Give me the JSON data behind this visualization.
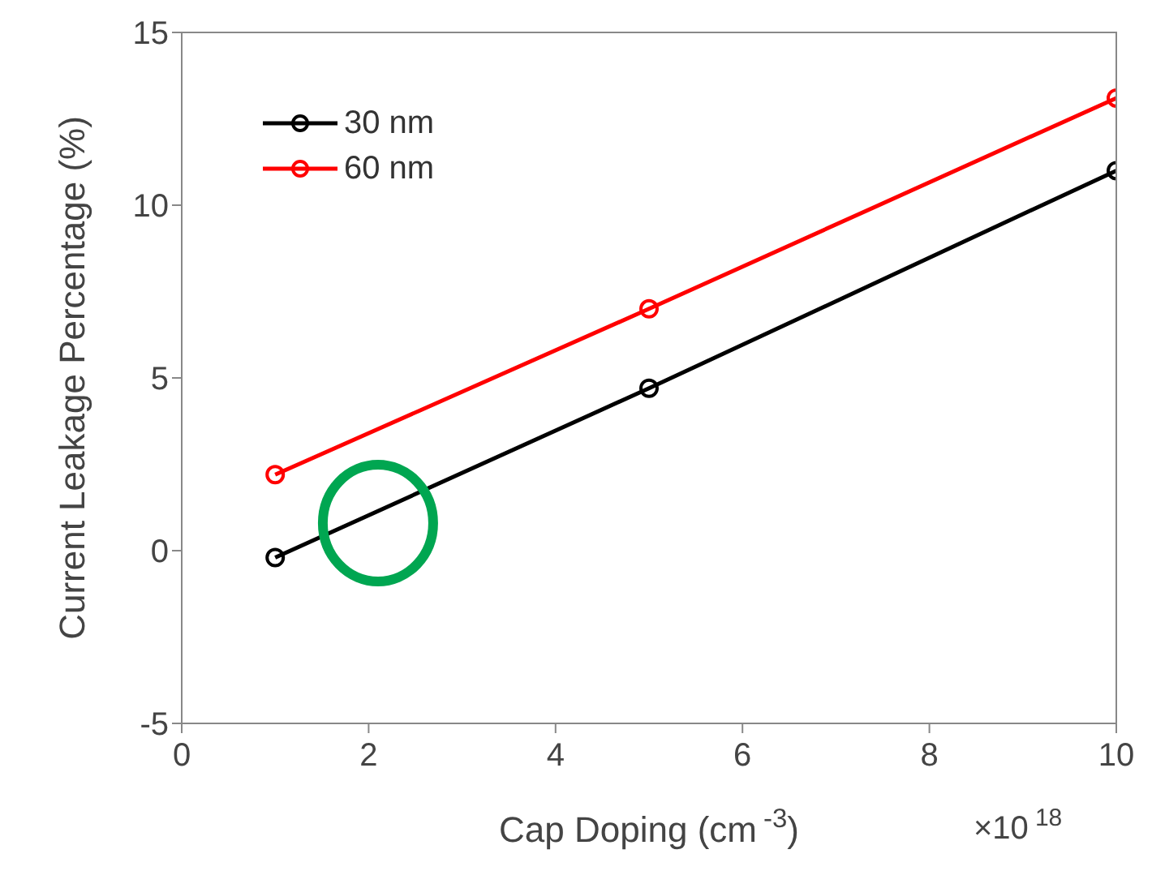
{
  "chart_data": {
    "type": "line",
    "xlabel": "Cap Doping (cm$^{-3}$)",
    "ylabel": "Current Leakage Percentage (%)",
    "annotations": [
      "×10$^{18}$"
    ],
    "x": [
      1,
      5,
      10
    ],
    "series": [
      {
        "name": "30 nm",
        "color": "#000000",
        "values": [
          -0.2,
          4.7,
          11.0
        ]
      },
      {
        "name": "60 nm",
        "color": "#ff0000",
        "values": [
          2.2,
          7.0,
          13.1
        ]
      }
    ],
    "xlim": [
      0,
      10
    ],
    "xticks": [
      0,
      2,
      4,
      6,
      8,
      10
    ],
    "ylim": [
      -5,
      15
    ],
    "yticks": [
      -5,
      0,
      5,
      10,
      15
    ],
    "legend": "top left",
    "marker": "circle",
    "line_style": "solid"
  }
}
